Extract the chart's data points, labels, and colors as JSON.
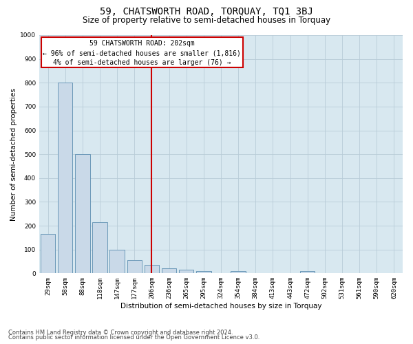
{
  "title": "59, CHATSWORTH ROAD, TORQUAY, TQ1 3BJ",
  "subtitle": "Size of property relative to semi-detached houses in Torquay",
  "xlabel": "Distribution of semi-detached houses by size in Torquay",
  "ylabel": "Number of semi-detached properties",
  "footnote1": "Contains HM Land Registry data © Crown copyright and database right 2024.",
  "footnote2": "Contains public sector information licensed under the Open Government Licence v3.0.",
  "annotation_title": "59 CHATSWORTH ROAD: 202sqm",
  "annotation_line1": "← 96% of semi-detached houses are smaller (1,816)",
  "annotation_line2": "4% of semi-detached houses are larger (76) →",
  "categories": [
    "29sqm",
    "58sqm",
    "88sqm",
    "118sqm",
    "147sqm",
    "177sqm",
    "206sqm",
    "236sqm",
    "265sqm",
    "295sqm",
    "324sqm",
    "354sqm",
    "384sqm",
    "413sqm",
    "443sqm",
    "472sqm",
    "502sqm",
    "531sqm",
    "561sqm",
    "590sqm",
    "620sqm"
  ],
  "values": [
    165,
    800,
    500,
    215,
    100,
    55,
    35,
    20,
    15,
    10,
    0,
    10,
    0,
    0,
    0,
    10,
    0,
    0,
    0,
    0,
    0
  ],
  "bar_color": "#c9d9e8",
  "bar_edge_color": "#5a8db0",
  "vline_color": "#cc0000",
  "box_edge_color": "#cc0000",
  "ylim": [
    0,
    1000
  ],
  "yticks": [
    0,
    100,
    200,
    300,
    400,
    500,
    600,
    700,
    800,
    900,
    1000
  ],
  "grid_color": "#b8ccd8",
  "bg_color": "#d8e8f0",
  "title_fontsize": 10,
  "subtitle_fontsize": 8.5,
  "axis_label_fontsize": 7.5,
  "tick_fontsize": 6.5,
  "annotation_fontsize": 7,
  "footnote_fontsize": 6
}
